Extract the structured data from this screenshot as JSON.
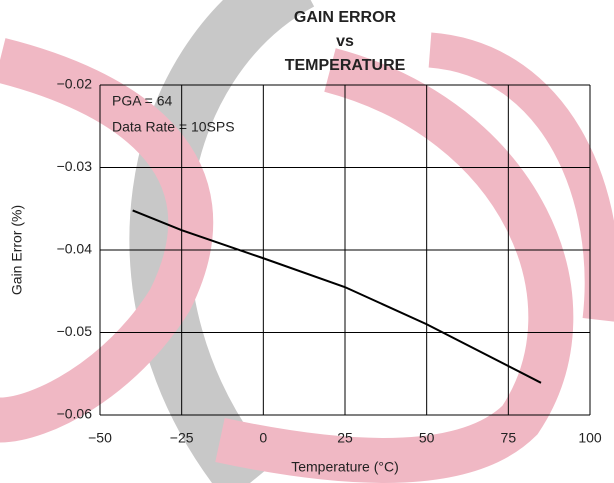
{
  "chart_data": {
    "type": "line",
    "title": [
      "GAIN ERROR",
      "vs",
      "TEMPERATURE"
    ],
    "annotations": [
      "PGA = 64",
      "Data Rate = 10SPS"
    ],
    "x_label": "Temperature (°C)",
    "y_label": "Gain Error (%)",
    "x": [
      -40,
      -25,
      0,
      25,
      50,
      85
    ],
    "values": [
      -0.0352,
      -0.0376,
      -0.041,
      -0.0445,
      -0.049,
      -0.0561
    ],
    "color": "#000000",
    "xlim": [
      -50,
      100
    ],
    "xticks": [
      {
        "value": -50,
        "label": "−50"
      },
      {
        "value": -25,
        "label": "−25"
      },
      0,
      25,
      50,
      75,
      100
    ],
    "ylim": [
      -0.06,
      -0.02
    ],
    "yticks": [
      {
        "value": -0.06,
        "label": "−0.06"
      },
      {
        "value": -0.05,
        "label": "−0.05"
      },
      {
        "value": -0.04,
        "label": "−0.04"
      },
      {
        "value": -0.03,
        "label": "−0.03"
      },
      {
        "value": -0.02,
        "label": "−0.02"
      }
    ],
    "grid": true
  }
}
